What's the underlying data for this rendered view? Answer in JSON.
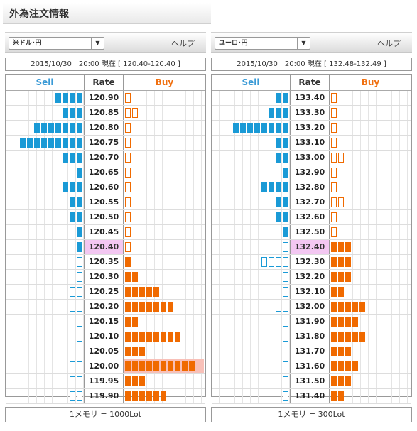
{
  "page": {
    "title": "外為注文情報"
  },
  "colors": {
    "sell": "#1a9ad6",
    "buy": "#f06a00",
    "current_rate_highlight": "#f3c7f2",
    "overflow_highlight": "#f8c0b8"
  },
  "panels": [
    {
      "pair": "米ドル･円",
      "select_arrow": "▼",
      "help": "ヘルプ",
      "rate_line": "2015/10/30　20:00 現在 [ 120.40-120.40 ]",
      "headers": {
        "sell": "Sell",
        "rate": "Rate",
        "buy": "Buy"
      },
      "current_rate": "120.40",
      "rows": [
        {
          "rate": "120.90",
          "sell": 4,
          "sell_type": "solid",
          "buy": 1,
          "buy_type": "hollow"
        },
        {
          "rate": "120.85",
          "sell": 3,
          "sell_type": "solid",
          "buy": 2,
          "buy_type": "hollow"
        },
        {
          "rate": "120.80",
          "sell": 7,
          "sell_type": "solid",
          "buy": 1,
          "buy_type": "hollow"
        },
        {
          "rate": "120.75",
          "sell": 9,
          "sell_type": "solid",
          "buy": 1,
          "buy_type": "hollow"
        },
        {
          "rate": "120.70",
          "sell": 3,
          "sell_type": "solid",
          "buy": 1,
          "buy_type": "hollow"
        },
        {
          "rate": "120.65",
          "sell": 1,
          "sell_type": "solid",
          "buy": 1,
          "buy_type": "hollow"
        },
        {
          "rate": "120.60",
          "sell": 3,
          "sell_type": "solid",
          "buy": 1,
          "buy_type": "hollow"
        },
        {
          "rate": "120.55",
          "sell": 2,
          "sell_type": "solid",
          "buy": 1,
          "buy_type": "hollow"
        },
        {
          "rate": "120.50",
          "sell": 2,
          "sell_type": "solid",
          "buy": 1,
          "buy_type": "hollow"
        },
        {
          "rate": "120.45",
          "sell": 1,
          "sell_type": "solid",
          "buy": 1,
          "buy_type": "hollow"
        },
        {
          "rate": "120.40",
          "sell": 1,
          "sell_type": "solid",
          "buy": 1,
          "buy_type": "hollow"
        },
        {
          "rate": "120.35",
          "sell": 1,
          "sell_type": "hollow",
          "buy": 1,
          "buy_type": "solid"
        },
        {
          "rate": "120.30",
          "sell": 1,
          "sell_type": "hollow",
          "buy": 2,
          "buy_type": "solid"
        },
        {
          "rate": "120.25",
          "sell": 2,
          "sell_type": "hollow",
          "buy": 5,
          "buy_type": "solid"
        },
        {
          "rate": "120.20",
          "sell": 2,
          "sell_type": "hollow",
          "buy": 7,
          "buy_type": "solid"
        },
        {
          "rate": "120.15",
          "sell": 1,
          "sell_type": "hollow",
          "buy": 2,
          "buy_type": "solid"
        },
        {
          "rate": "120.10",
          "sell": 1,
          "sell_type": "hollow",
          "buy": 8,
          "buy_type": "solid"
        },
        {
          "rate": "120.05",
          "sell": 1,
          "sell_type": "hollow",
          "buy": 3,
          "buy_type": "solid"
        },
        {
          "rate": "120.00",
          "sell": 2,
          "sell_type": "hollow",
          "buy": 10,
          "buy_type": "solid",
          "overflow": true
        },
        {
          "rate": "119.95",
          "sell": 2,
          "sell_type": "hollow",
          "buy": 3,
          "buy_type": "solid"
        },
        {
          "rate": "119.90",
          "sell": 2,
          "sell_type": "hollow",
          "buy": 6,
          "buy_type": "solid"
        }
      ],
      "footer": "1メモリ = 1000Lot"
    },
    {
      "pair": "ユーロ･円",
      "select_arrow": "▼",
      "help": "ヘルプ",
      "rate_line": "2015/10/30　20:00 現在 [ 132.48-132.49 ]",
      "headers": {
        "sell": "Sell",
        "rate": "Rate",
        "buy": "Buy"
      },
      "current_rate": "132.40",
      "rows": [
        {
          "rate": "133.40",
          "sell": 2,
          "sell_type": "solid",
          "buy": 1,
          "buy_type": "hollow"
        },
        {
          "rate": "133.30",
          "sell": 3,
          "sell_type": "solid",
          "buy": 1,
          "buy_type": "hollow"
        },
        {
          "rate": "133.20",
          "sell": 8,
          "sell_type": "solid",
          "buy": 1,
          "buy_type": "hollow"
        },
        {
          "rate": "133.10",
          "sell": 2,
          "sell_type": "solid",
          "buy": 1,
          "buy_type": "hollow"
        },
        {
          "rate": "133.00",
          "sell": 2,
          "sell_type": "solid",
          "buy": 2,
          "buy_type": "hollow"
        },
        {
          "rate": "132.90",
          "sell": 1,
          "sell_type": "solid",
          "buy": 1,
          "buy_type": "hollow"
        },
        {
          "rate": "132.80",
          "sell": 4,
          "sell_type": "solid",
          "buy": 1,
          "buy_type": "hollow"
        },
        {
          "rate": "132.70",
          "sell": 2,
          "sell_type": "solid",
          "buy": 2,
          "buy_type": "hollow"
        },
        {
          "rate": "132.60",
          "sell": 2,
          "sell_type": "solid",
          "buy": 1,
          "buy_type": "hollow"
        },
        {
          "rate": "132.50",
          "sell": 1,
          "sell_type": "solid",
          "buy": 1,
          "buy_type": "hollow"
        },
        {
          "rate": "132.40",
          "sell": 1,
          "sell_type": "hollow",
          "buy": 3,
          "buy_type": "solid"
        },
        {
          "rate": "132.30",
          "sell": 4,
          "sell_type": "hollow",
          "buy": 3,
          "buy_type": "solid"
        },
        {
          "rate": "132.20",
          "sell": 1,
          "sell_type": "hollow",
          "buy": 3,
          "buy_type": "solid"
        },
        {
          "rate": "132.10",
          "sell": 1,
          "sell_type": "hollow",
          "buy": 2,
          "buy_type": "solid"
        },
        {
          "rate": "132.00",
          "sell": 2,
          "sell_type": "hollow",
          "buy": 5,
          "buy_type": "solid"
        },
        {
          "rate": "131.90",
          "sell": 1,
          "sell_type": "hollow",
          "buy": 4,
          "buy_type": "solid"
        },
        {
          "rate": "131.80",
          "sell": 1,
          "sell_type": "hollow",
          "buy": 5,
          "buy_type": "solid"
        },
        {
          "rate": "131.70",
          "sell": 2,
          "sell_type": "hollow",
          "buy": 3,
          "buy_type": "solid"
        },
        {
          "rate": "131.60",
          "sell": 1,
          "sell_type": "hollow",
          "buy": 4,
          "buy_type": "solid"
        },
        {
          "rate": "131.50",
          "sell": 1,
          "sell_type": "hollow",
          "buy": 3,
          "buy_type": "solid"
        },
        {
          "rate": "131.40",
          "sell": 1,
          "sell_type": "hollow",
          "buy": 2,
          "buy_type": "solid"
        }
      ],
      "footer": "1メモリ = 300Lot"
    }
  ]
}
